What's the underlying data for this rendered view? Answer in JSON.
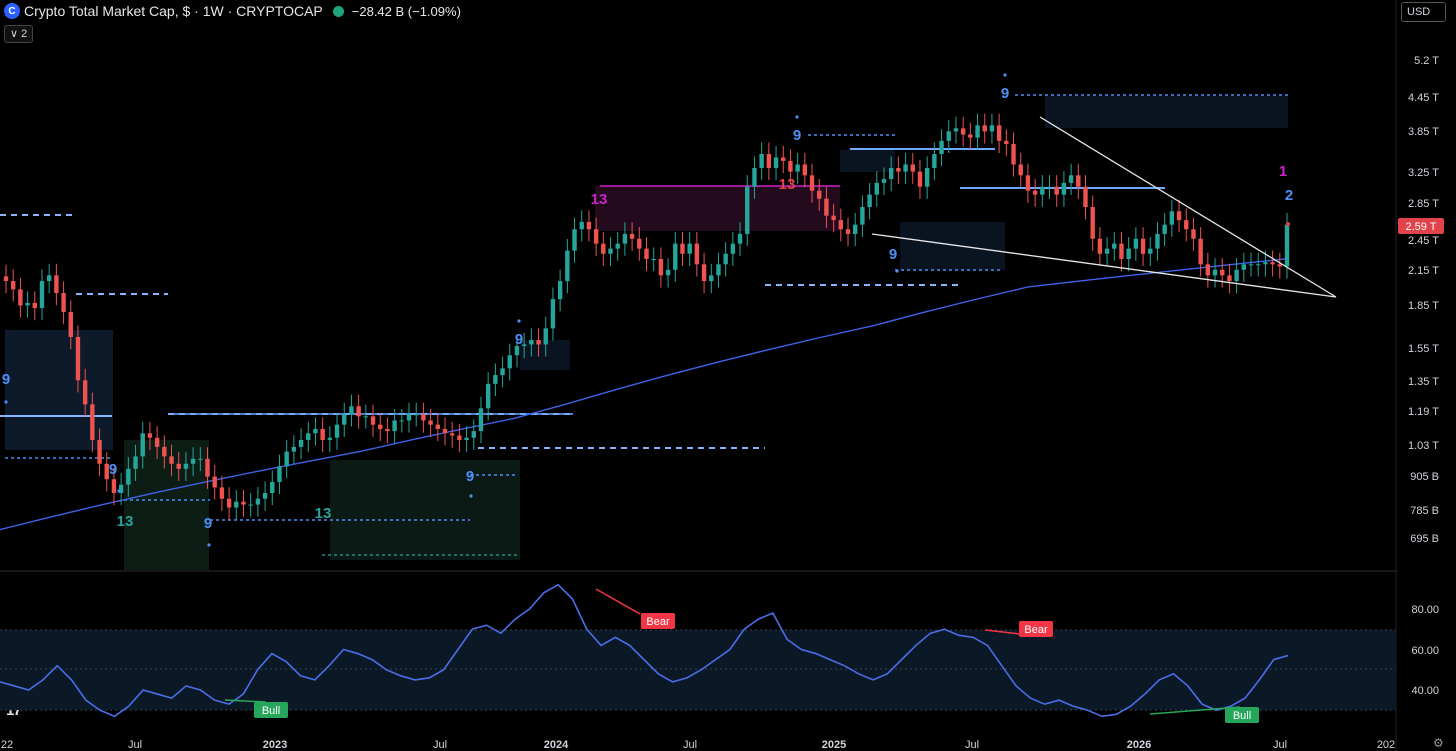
{
  "header": {
    "title": "Crypto Total Market Cap, $ · 1W · CRYPTOCAP",
    "change": "−28.42 B (−1.09%)",
    "collapse_label": "2",
    "currency": "USD"
  },
  "colors": {
    "up": "#26a69a",
    "down": "#ef5350",
    "ma": "#3f62e6",
    "rsi": "#4a6ee8",
    "sequential": "#4c8ff5",
    "thirteen_green": "#26a69a",
    "thirteen_red": "#e0434a",
    "thirteen_magenta": "#c924c9",
    "price_badge": "#e0434a",
    "bear_badge": "#f23645",
    "bull_badge": "#26a65a",
    "trend_line": "#e6e6e6"
  },
  "chart_data": [
    {
      "type": "candlestick",
      "title": "Crypto Total Market Cap, $ · 1W · CRYPTOCAP",
      "x_axis_ticks": [
        "22",
        "Jul",
        "2023",
        "Jul",
        "2024",
        "Jul",
        "2025",
        "Jul",
        "2026",
        "Jul",
        "202"
      ],
      "y_axis_ticks": [
        "5.2 T",
        "4.45 T",
        "3.85 T",
        "3.25 T",
        "2.85 T",
        "2.45 T",
        "2.15 T",
        "1.85 T",
        "1.55 T",
        "1.35 T",
        "1.19 T",
        "1.03 T",
        "905 B",
        "785 B",
        "695 B"
      ],
      "y_scale": "log",
      "last_price_label": "2.59 T",
      "series": [
        {
          "name": "",
          "values": [
            2.05,
            1.98,
            1.85,
            1.87,
            1.83,
            2.05,
            2.1,
            1.95,
            1.8,
            1.62,
            1.35,
            1.22,
            1.05,
            0.95,
            0.89,
            0.84,
            0.87,
            0.93,
            0.98,
            1.08,
            1.06,
            1.02,
            0.98,
            0.95,
            0.93,
            0.95,
            0.97,
            0.97,
            0.9,
            0.86,
            0.82,
            0.79,
            0.81,
            0.8,
            0.8,
            0.82,
            0.84,
            0.88,
            0.94,
            1.0,
            1.02,
            1.05,
            1.08,
            1.1,
            1.05,
            1.06,
            1.12,
            1.17,
            1.21,
            1.16,
            1.16,
            1.12,
            1.1,
            1.09,
            1.14,
            1.14,
            1.17,
            1.17,
            1.14,
            1.12,
            1.1,
            1.08,
            1.07,
            1.05,
            1.06,
            1.09,
            1.2,
            1.33,
            1.38,
            1.42,
            1.5,
            1.56,
            1.57,
            1.6,
            1.57,
            1.68,
            1.9,
            2.05,
            2.33,
            2.55,
            2.63,
            2.55,
            2.4,
            2.3,
            2.35,
            2.4,
            2.5,
            2.45,
            2.35,
            2.25,
            2.25,
            2.1,
            2.15,
            2.4,
            2.3,
            2.4,
            2.2,
            2.05,
            2.1,
            2.2,
            2.3,
            2.4,
            2.5,
            3.05,
            3.3,
            3.5,
            3.3,
            3.45,
            3.4,
            3.25,
            3.35,
            3.2,
            3.0,
            2.9,
            2.7,
            2.65,
            2.55,
            2.5,
            2.6,
            2.8,
            2.95,
            3.1,
            3.15,
            3.3,
            3.25,
            3.35,
            3.25,
            3.05,
            3.3,
            3.5,
            3.7,
            3.85,
            3.9,
            3.8,
            3.75,
            3.95,
            3.85,
            3.95,
            3.7,
            3.65,
            3.35,
            3.2,
            3.0,
            2.95,
            3.05,
            3.05,
            2.95,
            3.1,
            3.2,
            3.05,
            2.8,
            2.45,
            2.3,
            2.35,
            2.4,
            2.25,
            2.35,
            2.45,
            2.3,
            2.35,
            2.5,
            2.6,
            2.75,
            2.65,
            2.55,
            2.45,
            2.2,
            2.1,
            2.15,
            2.1,
            2.05,
            2.15,
            2.2,
            2.2,
            2.2,
            2.22,
            2.2,
            2.18,
            2.6
          ]
        },
        {
          "name": "",
          "type": "line",
          "values": [
            0.72,
            0.76,
            0.8,
            0.84,
            0.88,
            0.92,
            0.96,
            1.0,
            1.05,
            1.1,
            1.15,
            1.22,
            1.3,
            1.38,
            1.46,
            1.54,
            1.62,
            1.7,
            1.8,
            1.9,
            2.0,
            2.05,
            2.1,
            2.15,
            2.2,
            2.25
          ]
        }
      ],
      "annotations": [
        "9",
        "9",
        "13",
        "9",
        "13",
        "9",
        "9",
        "13",
        "9",
        "13",
        "9",
        "9",
        "1",
        "2"
      ]
    },
    {
      "type": "line",
      "y_axis_ticks": [
        "80.00",
        "60.00",
        "40.00"
      ],
      "series": [
        {
          "name": "",
          "values": [
            44,
            42,
            40,
            45,
            52,
            45,
            35,
            30,
            27,
            32,
            40,
            38,
            36,
            42,
            40,
            35,
            33,
            38,
            50,
            58,
            54,
            47,
            45,
            52,
            60,
            58,
            55,
            50,
            47,
            45,
            46,
            50,
            60,
            70,
            72,
            68,
            75,
            80,
            88,
            92,
            85,
            70,
            62,
            66,
            62,
            55,
            48,
            44,
            46,
            50,
            55,
            60,
            70,
            75,
            78,
            65,
            60,
            58,
            55,
            52,
            48,
            45,
            48,
            55,
            62,
            68,
            70,
            67,
            66,
            62,
            52,
            42,
            36,
            33,
            35,
            32,
            30,
            27,
            28,
            32,
            38,
            45,
            48,
            42,
            33,
            30,
            32,
            36,
            45,
            55,
            57
          ]
        }
      ],
      "annotations": [
        "Bear",
        "Bear",
        "Bull",
        "Bull"
      ]
    }
  ]
}
